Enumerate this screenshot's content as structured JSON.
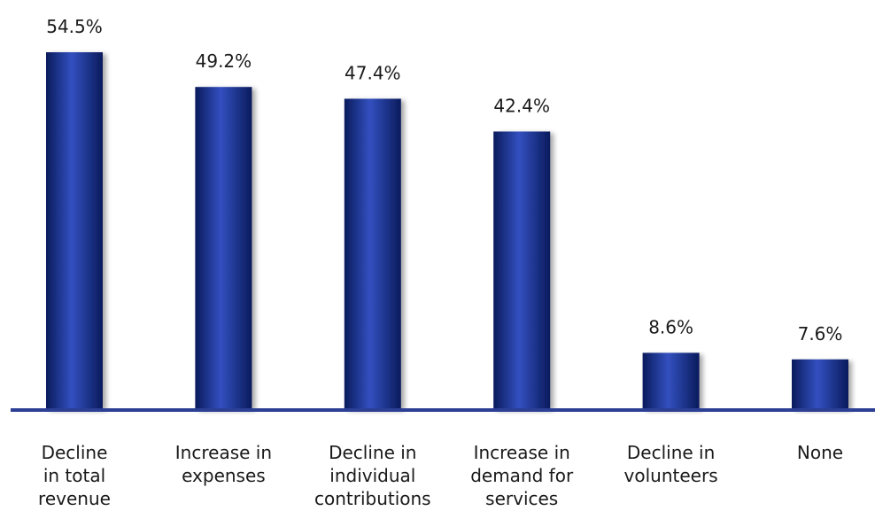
{
  "chart_data": {
    "type": "bar",
    "title": "",
    "xlabel": "",
    "ylabel": "",
    "ylim": [
      0,
      54.5
    ],
    "grid": false,
    "categories": [
      [
        "Decline",
        "in total",
        "revenue"
      ],
      [
        "Increase in",
        "expenses"
      ],
      [
        "Decline in",
        "individual",
        "contributions"
      ],
      [
        "Increase in",
        "demand for",
        "services"
      ],
      [
        "Decline in",
        "volunteers"
      ],
      [
        "None"
      ]
    ],
    "values": [
      54.5,
      49.2,
      47.4,
      42.4,
      8.6,
      7.6
    ],
    "value_labels": [
      "54.5%",
      "49.2%",
      "47.4%",
      "42.4%",
      "8.6%",
      "7.6%"
    ],
    "colors": {
      "bar_dark": "#0a1b5c",
      "bar_mid": "#1d3aa0",
      "bar_light": "#3350c0",
      "baseline": "#2b3f95"
    }
  }
}
